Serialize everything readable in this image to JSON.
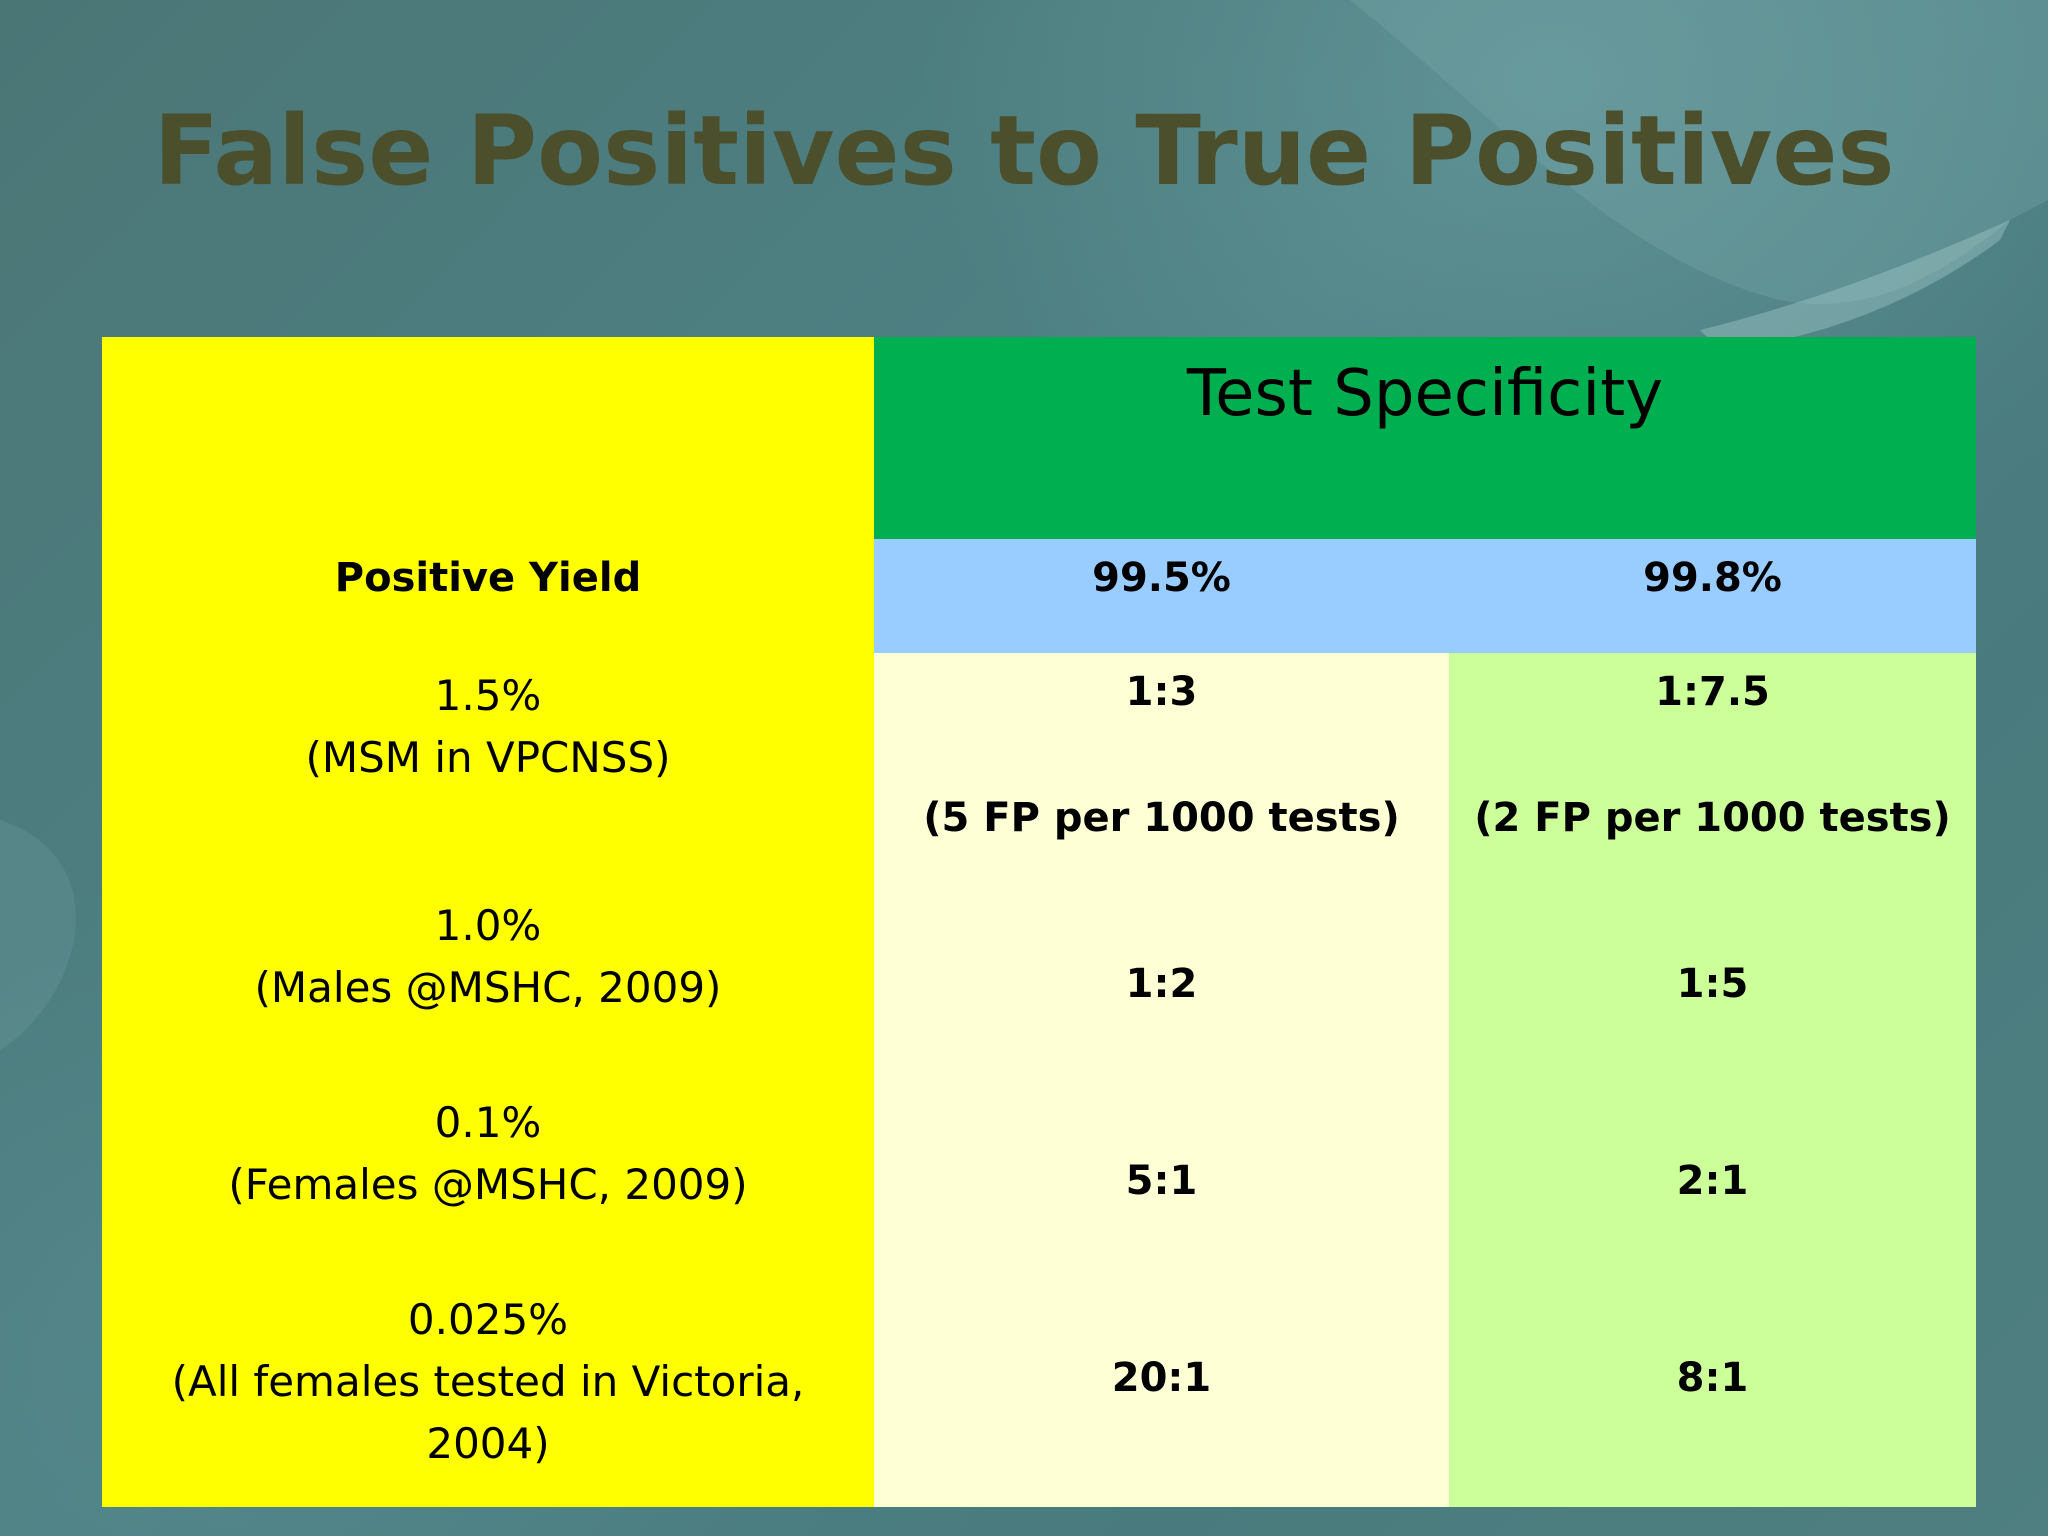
{
  "slide": {
    "title": "False Positives to True Positives"
  },
  "table": {
    "group_header": "Test Specificity",
    "row_header_label": "Positive Yield",
    "specificity_columns": [
      "99.5%",
      "99.8%"
    ],
    "rows": [
      {
        "yield": "1.5%",
        "population": "(MSM in VPCNSS)",
        "ratio_995": "1:3",
        "ratio_998": "1:7.5",
        "note_995": "(5 FP per 1000 tests)",
        "note_998": "(2 FP per 1000 tests)"
      },
      {
        "yield": "1.0%",
        "population": "(Males @MSHC, 2009)",
        "ratio_995": "1:2",
        "ratio_998": "1:5"
      },
      {
        "yield": "0.1%",
        "population": "(Females @MSHC, 2009)",
        "ratio_995": "5:1",
        "ratio_998": "2:1"
      },
      {
        "yield": "0.025%",
        "population_line1": "(All females tested in Victoria,",
        "population_line2": "2004)",
        "ratio_995": "20:1",
        "ratio_998": "8:1"
      }
    ]
  },
  "colors": {
    "yield_column": "#ffff00",
    "header_green": "#00b050",
    "specificity_row": "#99ccff",
    "col_995": "#ffffd6",
    "col_998": "#ccff99",
    "title_text": "#4b4f2c"
  }
}
